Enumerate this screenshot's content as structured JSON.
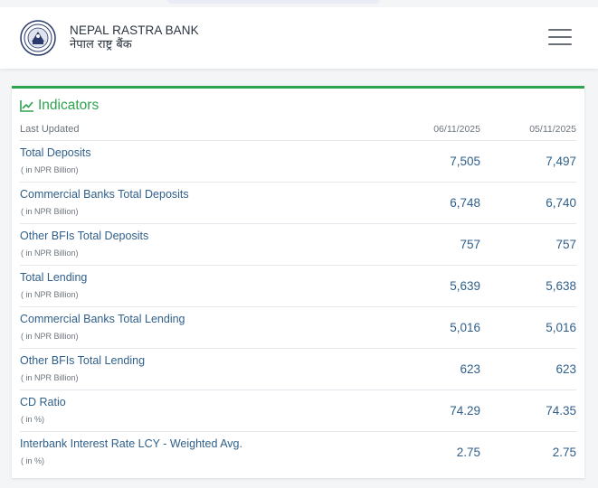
{
  "header": {
    "bank_name_en": "NEPAL RASTRA BANK",
    "bank_name_np": "नेपाल राष्ट्र बैंक",
    "logo_icon": "nrb-seal-icon",
    "menu_icon": "hamburger-menu-icon"
  },
  "indicators": {
    "title": "Indicators",
    "title_icon": "line-chart-icon",
    "accent_color": "#2da44e",
    "last_updated_label": "Last Updated",
    "dates": [
      "06/11/2025",
      "05/11/2025"
    ],
    "rows": [
      {
        "name": "Total Deposits",
        "unit": "( in NPR Billion)",
        "v1": "7,505",
        "v2": "7,497"
      },
      {
        "name": "Commercial Banks Total Deposits",
        "unit": "( in NPR Billion)",
        "v1": "6,748",
        "v2": "6,740"
      },
      {
        "name": "Other BFIs Total Deposits",
        "unit": "( in NPR Billion)",
        "v1": "757",
        "v2": "757"
      },
      {
        "name": "Total Lending",
        "unit": "( in NPR Billion)",
        "v1": "5,639",
        "v2": "5,638"
      },
      {
        "name": "Commercial Banks Total Lending",
        "unit": "( in NPR Billion)",
        "v1": "5,016",
        "v2": "5,016"
      },
      {
        "name": "Other BFIs Total Lending",
        "unit": "( in NPR Billion)",
        "v1": "623",
        "v2": "623"
      },
      {
        "name": "CD Ratio",
        "unit": "( in %)",
        "v1": "74.29",
        "v2": "74.35"
      },
      {
        "name": "Interbank Interest Rate LCY - Weighted Avg.",
        "unit": "( in %)",
        "v1": "2.75",
        "v2": "2.75"
      }
    ]
  }
}
